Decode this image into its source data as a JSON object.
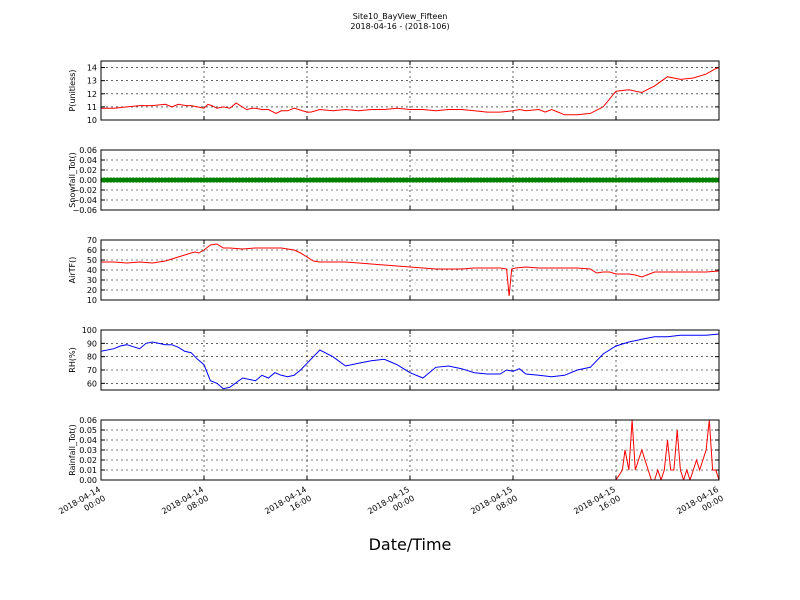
{
  "title": "Site10_BayView_Fifteen",
  "subtitle": "2018-04-16 - (2018-106)",
  "xlabel": "Date/Time",
  "x_ticks": [
    [
      "2018-04-14",
      "00:00"
    ],
    [
      "2018-04-14",
      "08:00"
    ],
    [
      "2018-04-14",
      "16:00"
    ],
    [
      "2018-04-15",
      "00:00"
    ],
    [
      "2018-04-15",
      "08:00"
    ],
    [
      "2018-04-15",
      "16:00"
    ],
    [
      "2018-04-16",
      "00:00"
    ]
  ],
  "colors": {
    "pressure": "#ff0000",
    "snowfall": "#008000",
    "airtemp": "#ff0000",
    "rh": "#0000ff",
    "rainfall": "#ff0000"
  },
  "chart_data": [
    {
      "type": "line",
      "ylabel": "P(unitless)",
      "ylim": [
        10,
        14.5
      ],
      "yticks": [
        10,
        11,
        12,
        13,
        14
      ],
      "ytick_labels": [
        "10",
        "11",
        "12",
        "13",
        "14"
      ],
      "xlim_hours": [
        0,
        48
      ],
      "grid": true,
      "series": [
        {
          "color": "#ff0000",
          "x": [
            0,
            1,
            2,
            3,
            3.6,
            4,
            5,
            5.5,
            6,
            6.6,
            7,
            7.5,
            8,
            8.3,
            8.6,
            9,
            9.5,
            10,
            10.5,
            10.8,
            11.3,
            11.8,
            12,
            12.5,
            13,
            13.6,
            14,
            14.5,
            15,
            16,
            16.3,
            17,
            18,
            19,
            20,
            21,
            22,
            23,
            24,
            25,
            26,
            27,
            28,
            29,
            30,
            31,
            32,
            32.5,
            33,
            34,
            34.5,
            35,
            35.5,
            36,
            37,
            38,
            39,
            40,
            41,
            42,
            43,
            44,
            45,
            46,
            47,
            47.7,
            48
          ],
          "y": [
            10.9,
            10.9,
            11,
            11.1,
            11.1,
            11.1,
            11.2,
            11,
            11.2,
            11.1,
            11.1,
            11,
            10.9,
            11.2,
            11.1,
            10.9,
            11,
            10.9,
            11.3,
            11.1,
            10.8,
            10.9,
            10.9,
            10.8,
            10.8,
            10.5,
            10.7,
            10.7,
            10.9,
            10.6,
            10.6,
            10.8,
            10.7,
            10.8,
            10.7,
            10.8,
            10.8,
            10.9,
            10.8,
            10.8,
            10.7,
            10.8,
            10.8,
            10.7,
            10.6,
            10.6,
            10.7,
            10.8,
            10.7,
            10.8,
            10.6,
            10.8,
            10.6,
            10.4,
            10.4,
            10.5,
            11,
            12.2,
            12.3,
            12.1,
            12.6,
            13.3,
            13.1,
            13.2,
            13.5,
            13.9,
            14
          ]
        }
      ]
    },
    {
      "type": "scatter",
      "ylabel": "Snowfall_Tot()",
      "ylim": [
        -0.06,
        0.06
      ],
      "yticks": [
        -0.06,
        -0.04,
        -0.02,
        0,
        0.02,
        0.04,
        0.06
      ],
      "ytick_labels": [
        "−0.06",
        "−0.04",
        "−0.02",
        "0.00",
        "0.02",
        "0.04",
        "0.06"
      ],
      "xlim_hours": [
        0,
        48
      ],
      "grid": true,
      "series": [
        {
          "color": "#008000",
          "x_range": [
            0,
            48
          ],
          "count": 193,
          "value": 0
        }
      ]
    },
    {
      "type": "line",
      "ylabel": "AirTF()",
      "ylim": [
        10,
        70
      ],
      "yticks": [
        10,
        20,
        30,
        40,
        50,
        60,
        70
      ],
      "ytick_labels": [
        "10",
        "20",
        "30",
        "40",
        "50",
        "60",
        "70"
      ],
      "xlim_hours": [
        0,
        48
      ],
      "grid": true,
      "series": [
        {
          "color": "#ff0000",
          "x": [
            0,
            1,
            2,
            3,
            4,
            5,
            5.5,
            6,
            6.5,
            7,
            7.3,
            7.6,
            8,
            8.5,
            9,
            9.5,
            10,
            11,
            12,
            13,
            14,
            15,
            15.5,
            16,
            16.5,
            17,
            18,
            19,
            20,
            21,
            22,
            23,
            24,
            25,
            26,
            27,
            28,
            29,
            30,
            31,
            31.5,
            31.7,
            31.9,
            32.2,
            33,
            34,
            35,
            36,
            37,
            38,
            38.5,
            39,
            39.5,
            40,
            41,
            41.5,
            42,
            43,
            44,
            45,
            46,
            47,
            48
          ],
          "y": [
            48,
            48,
            47,
            48,
            47,
            49,
            51,
            53,
            55,
            57,
            58,
            57,
            60,
            65,
            66,
            62,
            62,
            61,
            62,
            62,
            62,
            60,
            57,
            53,
            49,
            48,
            48,
            48,
            47,
            46,
            45,
            44,
            43,
            42,
            41,
            41,
            41,
            42,
            42,
            42,
            41,
            14,
            41,
            42,
            43,
            42,
            42,
            42,
            42,
            41,
            37,
            38,
            38,
            36,
            36,
            35,
            33,
            38,
            38,
            38,
            38,
            38,
            39
          ]
        }
      ]
    },
    {
      "type": "line",
      "ylabel": "RH(%)",
      "ylim": [
        55,
        100
      ],
      "yticks": [
        60,
        70,
        80,
        90,
        100
      ],
      "ytick_labels": [
        "60",
        "70",
        "80",
        "90",
        "100"
      ],
      "xlim_hours": [
        0,
        48
      ],
      "grid": true,
      "series": [
        {
          "color": "#0000ff",
          "x": [
            0,
            1,
            1.5,
            2,
            3,
            3.5,
            4,
            5,
            5.5,
            6,
            6.5,
            7,
            7.5,
            8,
            8.5,
            9,
            9.5,
            10,
            11,
            12,
            12.5,
            13,
            13.5,
            14,
            14.5,
            15,
            15.5,
            16,
            17,
            18,
            19,
            20,
            20.5,
            21,
            22,
            22.5,
            23,
            24,
            25,
            26,
            27,
            28,
            29,
            30,
            31,
            31.5,
            32,
            32.5,
            33,
            34,
            35,
            36,
            37,
            38,
            39,
            40,
            41,
            42,
            43,
            44,
            45,
            46,
            47,
            48
          ],
          "y": [
            84,
            86,
            88,
            89,
            86,
            90,
            91,
            89,
            89,
            87,
            84,
            83,
            78,
            74,
            62,
            60,
            56,
            57,
            64,
            62,
            66,
            64,
            68,
            66,
            65,
            66,
            70,
            75,
            85,
            80,
            73,
            75,
            76,
            77,
            78,
            76,
            74,
            68,
            64,
            72,
            73,
            71,
            68,
            67,
            67,
            70,
            69,
            71,
            67,
            66,
            65,
            66,
            70,
            72,
            82,
            88,
            91,
            93,
            95,
            95,
            96,
            96,
            96,
            97
          ]
        }
      ]
    },
    {
      "type": "line",
      "ylabel": "Rainfall_Tot()",
      "ylim": [
        0,
        0.06
      ],
      "yticks": [
        0,
        0.01,
        0.02,
        0.03,
        0.04,
        0.05,
        0.06
      ],
      "ytick_labels": [
        "0.00",
        "0.01",
        "0.02",
        "0.03",
        "0.04",
        "0.05",
        "0.06"
      ],
      "xlim_hours": [
        0,
        48
      ],
      "grid": true,
      "series": [
        {
          "color": "#ff0000",
          "x": [
            0,
            40,
            40.5,
            40.7,
            41,
            41.25,
            41.5,
            41.75,
            42,
            42.25,
            42.5,
            42.75,
            43,
            43.25,
            43.5,
            43.75,
            44,
            44.25,
            44.5,
            44.75,
            45,
            45.25,
            45.5,
            45.75,
            46,
            46.25,
            46.5,
            46.75,
            47,
            47.25,
            47.5,
            47.75,
            48
          ],
          "y": [
            0,
            0,
            0.01,
            0.03,
            0.01,
            0.06,
            0.01,
            0.02,
            0.03,
            0.02,
            0.01,
            0,
            0,
            0.01,
            0,
            0.01,
            0.04,
            0.01,
            0.01,
            0.05,
            0.01,
            0,
            0.01,
            0,
            0.01,
            0.02,
            0.01,
            0.02,
            0.03,
            0.06,
            0.01,
            0.01,
            0
          ]
        }
      ]
    }
  ]
}
